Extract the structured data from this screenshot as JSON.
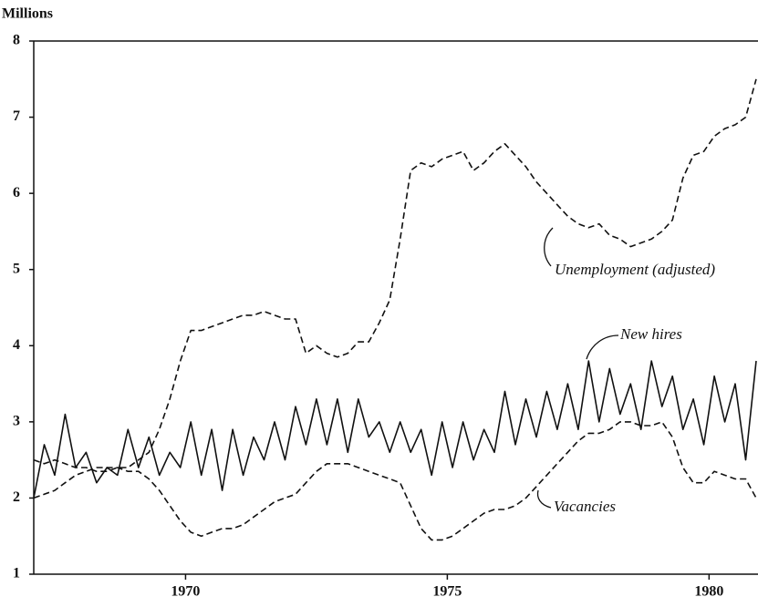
{
  "chart_data": {
    "type": "line",
    "ylabel": "Millions",
    "x": [
      1967.1,
      1967.3,
      1967.5,
      1967.7,
      1967.9,
      1968.1,
      1968.3,
      1968.5,
      1968.7,
      1968.9,
      1969.1,
      1969.3,
      1969.5,
      1969.7,
      1969.9,
      1970.1,
      1970.3,
      1970.5,
      1970.7,
      1970.9,
      1971.1,
      1971.3,
      1971.5,
      1971.7,
      1971.9,
      1972.1,
      1972.3,
      1972.5,
      1972.7,
      1972.9,
      1973.1,
      1973.3,
      1973.5,
      1973.7,
      1973.9,
      1974.1,
      1974.3,
      1974.5,
      1974.7,
      1974.9,
      1975.1,
      1975.3,
      1975.5,
      1975.7,
      1975.9,
      1976.1,
      1976.3,
      1976.5,
      1976.7,
      1976.9,
      1977.1,
      1977.3,
      1977.5,
      1977.7,
      1977.9,
      1978.1,
      1978.3,
      1978.5,
      1978.7,
      1978.9,
      1979.1,
      1979.3,
      1979.5,
      1979.7,
      1979.9,
      1980.1,
      1980.3,
      1980.5,
      1980.7,
      1980.9
    ],
    "series": [
      {
        "name": "Unemployment (adjusted)",
        "color": "#111111",
        "dashed": true,
        "values": [
          2.5,
          2.45,
          2.5,
          2.45,
          2.4,
          2.4,
          2.35,
          2.35,
          2.4,
          2.4,
          2.5,
          2.6,
          2.9,
          3.3,
          3.8,
          4.2,
          4.2,
          4.25,
          4.3,
          4.35,
          4.4,
          4.4,
          4.45,
          4.4,
          4.35,
          4.35,
          3.9,
          4.0,
          3.9,
          3.85,
          3.9,
          4.05,
          4.05,
          4.3,
          4.6,
          5.4,
          6.3,
          6.4,
          6.35,
          6.45,
          6.5,
          6.55,
          6.3,
          6.4,
          6.55,
          6.65,
          6.5,
          6.35,
          6.15,
          6.0,
          5.85,
          5.7,
          5.6,
          5.55,
          5.6,
          5.45,
          5.4,
          5.3,
          5.35,
          5.4,
          5.5,
          5.65,
          6.2,
          6.5,
          6.55,
          6.75,
          6.85,
          6.9,
          7.0,
          7.5
        ]
      },
      {
        "name": "New hires",
        "color": "#111111",
        "dashed": false,
        "values": [
          2.0,
          2.7,
          2.3,
          3.1,
          2.4,
          2.6,
          2.2,
          2.4,
          2.3,
          2.9,
          2.4,
          2.8,
          2.3,
          2.6,
          2.4,
          3.0,
          2.3,
          2.9,
          2.1,
          2.9,
          2.3,
          2.8,
          2.5,
          3.0,
          2.5,
          3.2,
          2.7,
          3.3,
          2.7,
          3.3,
          2.6,
          3.3,
          2.8,
          3.0,
          2.6,
          3.0,
          2.6,
          2.9,
          2.3,
          3.0,
          2.4,
          3.0,
          2.5,
          2.9,
          2.6,
          3.4,
          2.7,
          3.3,
          2.8,
          3.4,
          2.9,
          3.5,
          2.9,
          3.8,
          3.0,
          3.7,
          3.1,
          3.5,
          2.9,
          3.8,
          3.2,
          3.6,
          2.9,
          3.3,
          2.7,
          3.6,
          3.0,
          3.5,
          2.5,
          3.8
        ]
      },
      {
        "name": "Vacancies",
        "color": "#111111",
        "dashed": true,
        "values": [
          2.0,
          2.05,
          2.1,
          2.2,
          2.3,
          2.35,
          2.4,
          2.4,
          2.4,
          2.35,
          2.35,
          2.25,
          2.1,
          1.9,
          1.7,
          1.55,
          1.5,
          1.55,
          1.6,
          1.6,
          1.65,
          1.75,
          1.85,
          1.95,
          2.0,
          2.05,
          2.2,
          2.35,
          2.45,
          2.45,
          2.45,
          2.4,
          2.35,
          2.3,
          2.25,
          2.2,
          1.9,
          1.6,
          1.45,
          1.45,
          1.5,
          1.6,
          1.7,
          1.8,
          1.85,
          1.85,
          1.9,
          2.0,
          2.15,
          2.3,
          2.45,
          2.6,
          2.75,
          2.85,
          2.85,
          2.9,
          3.0,
          3.0,
          2.95,
          2.95,
          3.0,
          2.8,
          2.4,
          2.2,
          2.2,
          2.35,
          2.3,
          2.25,
          2.25,
          2.0
        ]
      }
    ],
    "xlim": [
      1967.1,
      1980.9
    ],
    "xticks": [
      1970,
      1975,
      1980
    ],
    "ylim": [
      1,
      8
    ],
    "yticks": [
      1,
      2,
      3,
      4,
      5,
      6,
      7,
      8
    ],
    "grid": false
  }
}
